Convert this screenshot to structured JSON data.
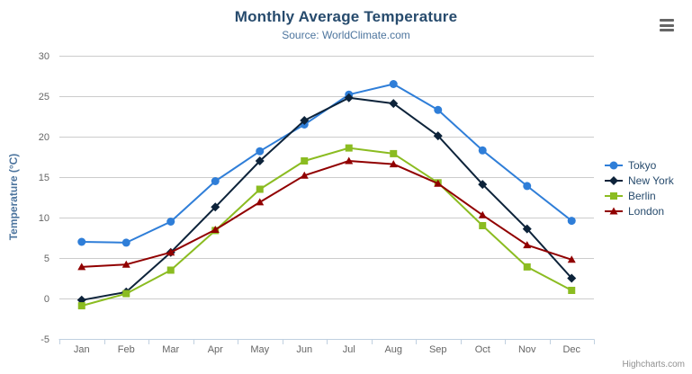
{
  "chart_data": {
    "type": "line",
    "title": "Monthly Average Temperature",
    "subtitle": "Source: WorldClimate.com",
    "ylabel": "Temperature (°C)",
    "xlabel": "",
    "categories": [
      "Jan",
      "Feb",
      "Mar",
      "Apr",
      "May",
      "Jun",
      "Jul",
      "Aug",
      "Sep",
      "Oct",
      "Nov",
      "Dec"
    ],
    "ylim": [
      -5,
      30
    ],
    "ytick_interval": 5,
    "grid": true,
    "legend_position": "right",
    "series": [
      {
        "name": "Tokyo",
        "color": "#2f7ed8",
        "symbol": "circle",
        "values": [
          7.0,
          6.9,
          9.5,
          14.5,
          18.2,
          21.5,
          25.2,
          26.5,
          23.3,
          18.3,
          13.9,
          9.6
        ]
      },
      {
        "name": "New York",
        "color": "#0d233a",
        "symbol": "diamond",
        "values": [
          -0.2,
          0.8,
          5.7,
          11.3,
          17.0,
          22.0,
          24.8,
          24.1,
          20.1,
          14.1,
          8.6,
          2.5
        ]
      },
      {
        "name": "Berlin",
        "color": "#8bbc21",
        "symbol": "square",
        "values": [
          -0.9,
          0.6,
          3.5,
          8.4,
          13.5,
          17.0,
          18.6,
          17.9,
          14.3,
          9.0,
          3.9,
          1.0
        ]
      },
      {
        "name": "London",
        "color": "#910000",
        "symbol": "triangle",
        "values": [
          3.9,
          4.2,
          5.7,
          8.5,
          11.9,
          15.2,
          17.0,
          16.6,
          14.2,
          10.3,
          6.6,
          4.8
        ]
      }
    ],
    "colors": {
      "grid": "#CCCCCC",
      "axis_line": "#C0D0E0",
      "tick": "#C0D0E0",
      "tick_label": "#666666",
      "axis_title": "#4d759e",
      "title": "#274b6d",
      "subtitle": "#4d759e",
      "legend_text": "#274b6d"
    }
  },
  "credits": "Highcharts.com"
}
